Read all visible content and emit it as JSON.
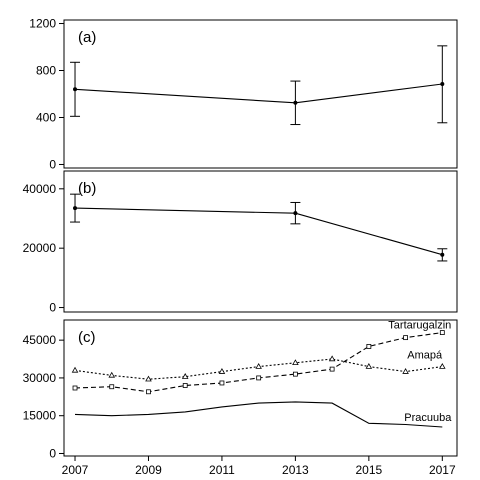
{
  "chart_data": [
    {
      "type": "line",
      "panel_label": "(a)",
      "x": [
        2007,
        2013,
        2017
      ],
      "series": [
        {
          "values": [
            640,
            525,
            685
          ],
          "error_low": [
            410,
            340,
            355
          ],
          "error_high": [
            870,
            710,
            1010
          ]
        }
      ],
      "yticks": [
        0,
        400,
        800,
        1200
      ],
      "ylim": [
        -30,
        1230
      ],
      "xlim": [
        2006.7,
        2017.4
      ]
    },
    {
      "type": "line",
      "panel_label": "(b)",
      "x": [
        2007,
        2013,
        2017
      ],
      "series": [
        {
          "values": [
            33500,
            31800,
            17800
          ],
          "error_low": [
            28800,
            28200,
            15700
          ],
          "error_high": [
            38200,
            35400,
            19800
          ]
        }
      ],
      "yticks": [
        0,
        20000,
        40000
      ],
      "ylim": [
        -1500,
        46000
      ],
      "xlim": [
        2006.7,
        2017.4
      ]
    },
    {
      "type": "line",
      "panel_label": "(c)",
      "x": [
        2007,
        2008,
        2009,
        2010,
        2011,
        2012,
        2013,
        2014,
        2015,
        2016,
        2017
      ],
      "xticks": [
        2007,
        2009,
        2011,
        2013,
        2015,
        2017
      ],
      "yticks": [
        0,
        15000,
        30000,
        45000
      ],
      "ylim": [
        -1000,
        53000
      ],
      "xlim": [
        2006.7,
        2017.4
      ],
      "series": [
        {
          "name": "Tartarugalzin",
          "marker": "square",
          "dash": "dashed",
          "values": [
            26000,
            26500,
            24500,
            27000,
            28000,
            30000,
            31500,
            33500,
            42500,
            46000,
            48000
          ]
        },
        {
          "name": "Amapá",
          "marker": "triangle",
          "dash": "dotted",
          "values": [
            33000,
            31000,
            29500,
            30500,
            32500,
            34500,
            36000,
            37500,
            34500,
            32500,
            34500
          ]
        },
        {
          "name": "Pracuuba",
          "marker": "none",
          "dash": "solid",
          "values": [
            15500,
            15000,
            15500,
            16500,
            18500,
            20000,
            20500,
            20000,
            12000,
            11500,
            10500
          ]
        }
      ]
    }
  ]
}
